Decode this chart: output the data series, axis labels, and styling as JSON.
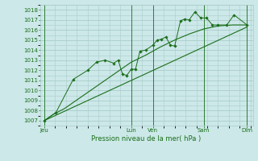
{
  "background_color": "#cce8e8",
  "grid_color": "#aacccc",
  "line_color": "#1a6e1a",
  "marker_color": "#1a6e1a",
  "xlabel": "Pression niveau de la mer( hPa )",
  "ylim": [
    1006.5,
    1018.5
  ],
  "yticks": [
    1007,
    1008,
    1009,
    1010,
    1011,
    1012,
    1013,
    1014,
    1015,
    1016,
    1017,
    1018
  ],
  "day_labels": [
    "Jeu",
    "Lun",
    "Ven",
    "Sam",
    "Dim"
  ],
  "day_positions": [
    0.0,
    3.0,
    3.75,
    5.5,
    7.0
  ],
  "smooth_line": [
    [
      0.0,
      1007.0
    ],
    [
      0.3,
      1007.6
    ],
    [
      0.7,
      1008.2
    ],
    [
      1.0,
      1008.8
    ],
    [
      1.5,
      1009.8
    ],
    [
      2.0,
      1010.8
    ],
    [
      2.5,
      1011.8
    ],
    [
      3.0,
      1012.8
    ],
    [
      3.5,
      1013.5
    ],
    [
      3.75,
      1013.9
    ],
    [
      4.0,
      1014.3
    ],
    [
      4.5,
      1015.0
    ],
    [
      5.0,
      1015.6
    ],
    [
      5.5,
      1016.1
    ],
    [
      6.0,
      1016.4
    ],
    [
      6.5,
      1016.5
    ],
    [
      7.0,
      1016.5
    ]
  ],
  "jagged_line": [
    [
      0.0,
      1007.0
    ],
    [
      0.4,
      1007.8
    ],
    [
      1.0,
      1011.1
    ],
    [
      1.5,
      1012.0
    ],
    [
      1.8,
      1012.8
    ],
    [
      2.1,
      1013.0
    ],
    [
      2.4,
      1012.7
    ],
    [
      2.55,
      1013.0
    ],
    [
      2.7,
      1011.6
    ],
    [
      2.85,
      1011.5
    ],
    [
      3.0,
      1012.1
    ],
    [
      3.15,
      1012.1
    ],
    [
      3.3,
      1013.9
    ],
    [
      3.5,
      1014.0
    ],
    [
      3.75,
      1014.5
    ],
    [
      3.9,
      1015.0
    ],
    [
      4.05,
      1015.1
    ],
    [
      4.2,
      1015.3
    ],
    [
      4.35,
      1014.5
    ],
    [
      4.5,
      1014.4
    ],
    [
      4.7,
      1016.9
    ],
    [
      4.85,
      1017.1
    ],
    [
      5.0,
      1017.0
    ],
    [
      5.2,
      1017.8
    ],
    [
      5.4,
      1017.2
    ],
    [
      5.6,
      1017.2
    ],
    [
      5.8,
      1016.5
    ],
    [
      6.0,
      1016.5
    ],
    [
      6.3,
      1016.5
    ],
    [
      6.55,
      1017.5
    ],
    [
      7.0,
      1016.5
    ]
  ],
  "trend_line": [
    [
      0.0,
      1007.0
    ],
    [
      7.0,
      1016.3
    ]
  ],
  "vline_positions": [
    0.0,
    3.0,
    3.75,
    5.5,
    7.0
  ]
}
